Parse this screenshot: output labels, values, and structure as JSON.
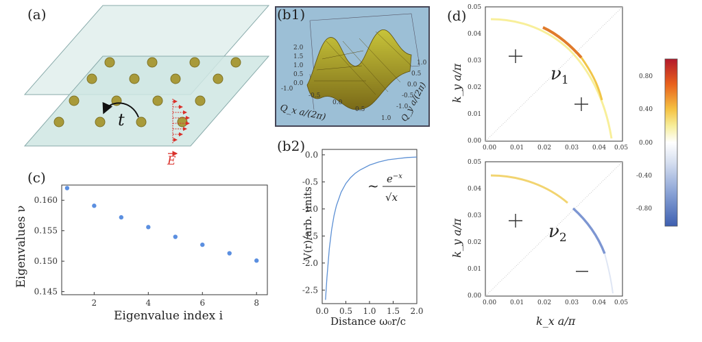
{
  "panels": {
    "a": {
      "label": "(a)",
      "hopping_label": "t",
      "field_label": "E"
    },
    "b1": {
      "label": "(b1)",
      "z_ticks": [
        "2.0",
        "1.5",
        "1.0",
        "0.5",
        "0.0"
      ],
      "x_ticks": [
        "-1.0",
        "-0.5",
        "0.0",
        "0.5",
        "1.0"
      ],
      "y_ticks": [
        "1.0",
        "0.5",
        "0.0",
        "-0.5",
        "-1.0"
      ],
      "xlabel": "Q_x a/(2π)",
      "ylabel": "Q_y a/(2π)"
    },
    "b2": {
      "label": "(b2)",
      "annotation": "~ e^{-x} / √x"
    },
    "c": {
      "label": "(c)"
    },
    "d": {
      "label": "(d)",
      "top_nu": "ν",
      "top_nu_sub": "1",
      "bottom_nu": "ν",
      "bottom_nu_sub": "2",
      "top_signs": [
        "+",
        "+"
      ],
      "bottom_signs": [
        "+",
        "−"
      ],
      "y_ticks": [
        "0.05",
        "0.04",
        "0.03",
        "0.02",
        "0.01",
        "0.00"
      ],
      "x_ticks": [
        "0.00",
        "0.01",
        "0.02",
        "0.03",
        "0.04",
        "0.05"
      ],
      "ylabel": "k_y a/π",
      "xlabel": "k_x a/π",
      "colorbar_ticks": [
        "0.80",
        "0.40",
        "0.00",
        "-0.40",
        "-0.80"
      ]
    }
  },
  "chart_data": [
    {
      "type": "line",
      "id": "b2",
      "xlabel": "Distance ω₀r/c",
      "ylabel": "V(r)/arb. units",
      "xlim": [
        0,
        2.0
      ],
      "ylim": [
        -2.75,
        0.1
      ],
      "x_ticks": [
        "0.0",
        "0.5",
        "1.0",
        "1.5",
        "2.0"
      ],
      "y_ticks": [
        "0.0",
        "-0.5",
        "-1.0",
        "-1.5",
        "-2.0",
        "-2.5"
      ],
      "series": [
        {
          "x": [
            0.07,
            0.1,
            0.15,
            0.2,
            0.25,
            0.3,
            0.4,
            0.5,
            0.6,
            0.7,
            0.8,
            1.0,
            1.2,
            1.4,
            1.6,
            1.8,
            2.0
          ],
          "y": [
            -2.68,
            -2.27,
            -1.73,
            -1.38,
            -1.12,
            -0.94,
            -0.69,
            -0.53,
            -0.42,
            -0.34,
            -0.28,
            -0.19,
            -0.13,
            -0.09,
            -0.07,
            -0.05,
            -0.04
          ]
        }
      ]
    },
    {
      "type": "scatter",
      "id": "c",
      "xlabel": "Eigenvalue index i",
      "ylabel": "Eigenvalues ν",
      "xlim": [
        0.8,
        8.4
      ],
      "ylim": [
        0.1445,
        0.1625
      ],
      "x_ticks": [
        "2",
        "4",
        "6",
        "8"
      ],
      "y_ticks": [
        "0.160",
        "0.155",
        "0.150",
        "0.145"
      ],
      "series": [
        {
          "x": [
            1,
            2,
            3,
            4,
            5,
            6,
            7,
            8
          ],
          "y": [
            0.162,
            0.1591,
            0.1572,
            0.1556,
            0.154,
            0.1527,
            0.1513,
            0.1501
          ]
        }
      ]
    }
  ]
}
